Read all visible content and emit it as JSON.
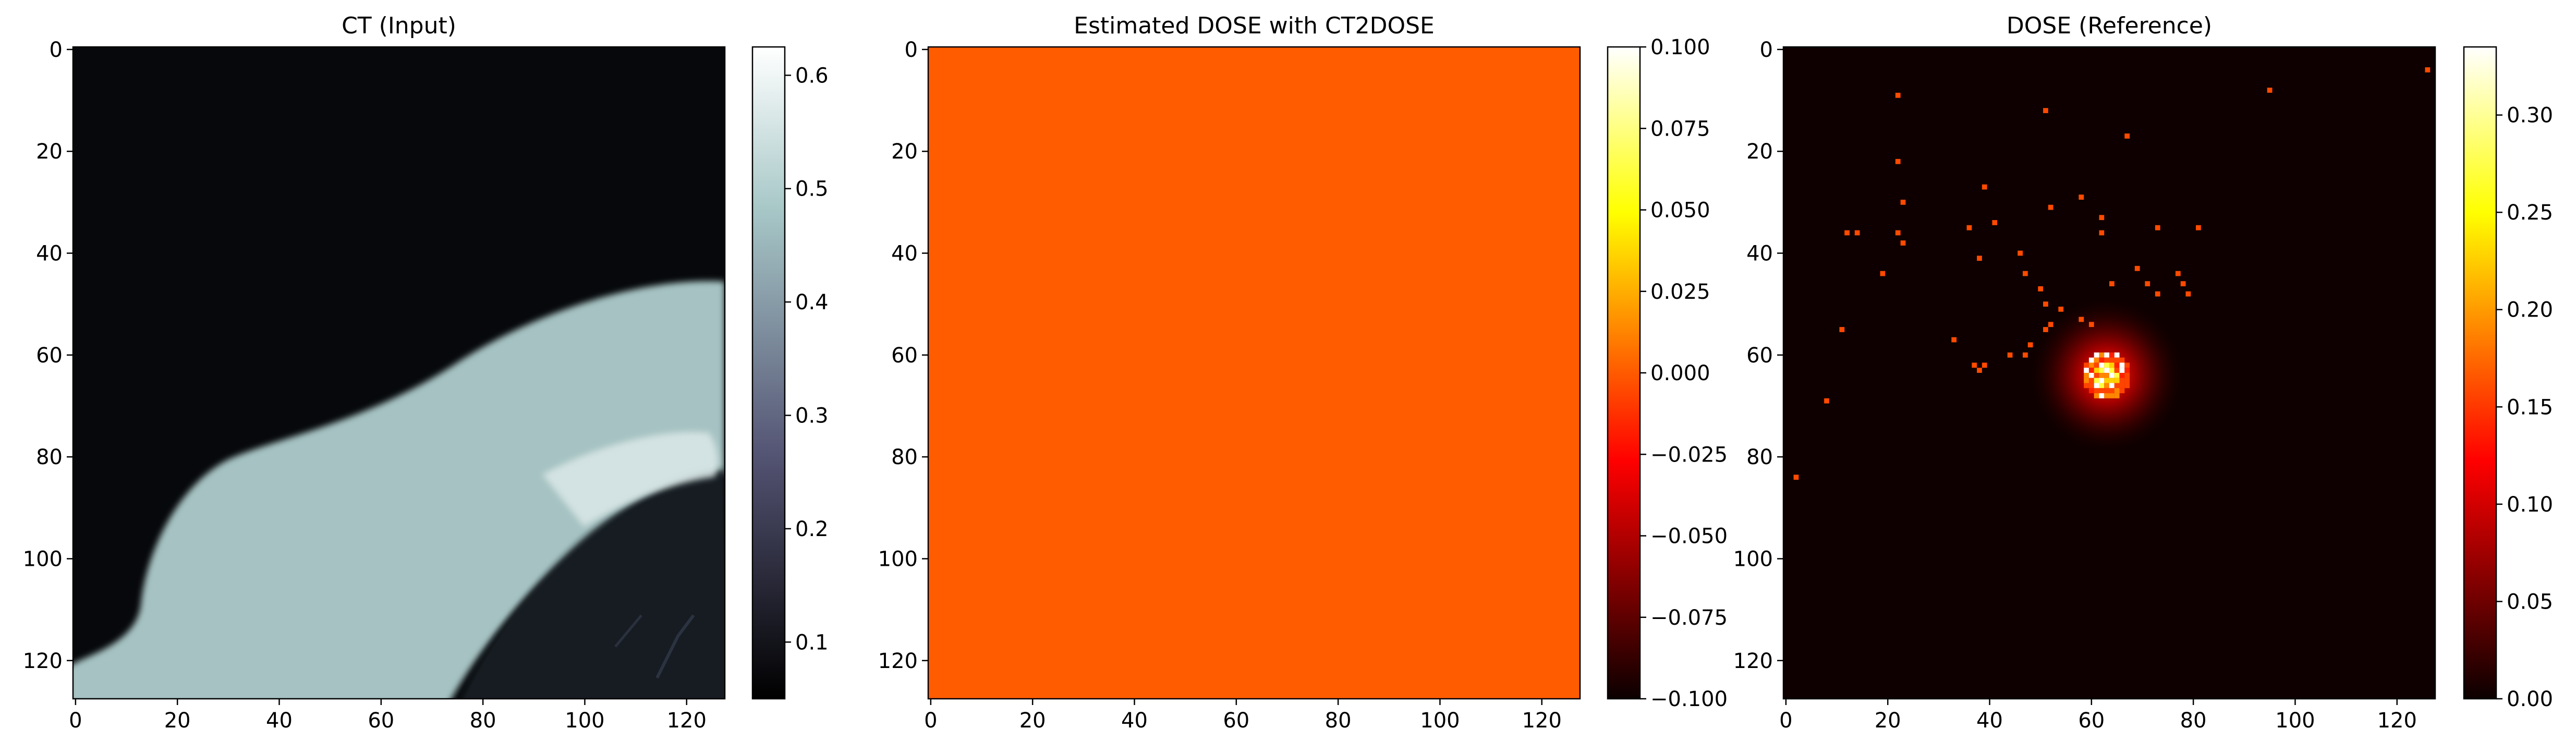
{
  "chart_data": [
    {
      "type": "heatmap",
      "title": "CT (Input)",
      "x_ticks": [
        "0",
        "20",
        "40",
        "60",
        "80",
        "100",
        "120"
      ],
      "y_ticks": [
        "0",
        "20",
        "40",
        "60",
        "80",
        "100",
        "120"
      ],
      "x_range": [
        0,
        127
      ],
      "y_range": [
        0,
        127
      ],
      "y_inverted": true,
      "colormap": "bone",
      "colorbar": {
        "ticks": [
          "0.1",
          "0.2",
          "0.3",
          "0.4",
          "0.5",
          "0.6"
        ],
        "range": [
          0.05,
          0.625
        ]
      },
      "regions": [
        {
          "label": "air",
          "value": 0.06
        },
        {
          "label": "soft tissue (curved band, upper-right to lower-left)",
          "value": 0.5
        },
        {
          "label": "rib/bone highlight",
          "value": 0.62
        },
        {
          "label": "lung (lower-right)",
          "value": 0.1
        }
      ]
    },
    {
      "type": "heatmap",
      "title": "Estimated DOSE with CT2DOSE",
      "x_ticks": [
        "0",
        "20",
        "40",
        "60",
        "80",
        "100",
        "120"
      ],
      "y_ticks": [
        "0",
        "20",
        "40",
        "60",
        "80",
        "100",
        "120"
      ],
      "x_range": [
        0,
        127
      ],
      "y_range": [
        0,
        127
      ],
      "y_inverted": true,
      "colormap": "hot",
      "colorbar": {
        "ticks": [
          "0.100",
          "0.075",
          "0.050",
          "0.025",
          "0.000",
          "−0.025",
          "−0.050",
          "−0.075",
          "−0.100"
        ],
        "range": [
          -0.1,
          0.1
        ]
      },
      "uniform_value": 0.0
    },
    {
      "type": "heatmap",
      "title": "DOSE (Reference)",
      "x_ticks": [
        "0",
        "20",
        "40",
        "60",
        "80",
        "100",
        "120"
      ],
      "y_ticks": [
        "0",
        "20",
        "40",
        "60",
        "80",
        "100",
        "120"
      ],
      "x_range": [
        0,
        127
      ],
      "y_range": [
        0,
        127
      ],
      "y_inverted": true,
      "colormap": "hot",
      "colorbar": {
        "ticks": [
          "0.30",
          "0.25",
          "0.20",
          "0.15",
          "0.10",
          "0.05",
          "0.00"
        ],
        "range": [
          0.0,
          0.335
        ]
      },
      "hotspot": {
        "center": [
          63,
          64
        ],
        "peak": 0.33
      },
      "scatter_pixels": [
        [
          22,
          9
        ],
        [
          51,
          12
        ],
        [
          95,
          8
        ],
        [
          126,
          4
        ],
        [
          22,
          22
        ],
        [
          67,
          17
        ],
        [
          39,
          27
        ],
        [
          58,
          29
        ],
        [
          23,
          30
        ],
        [
          52,
          31
        ],
        [
          36,
          35
        ],
        [
          12,
          36
        ],
        [
          14,
          36
        ],
        [
          22,
          36
        ],
        [
          41,
          34
        ],
        [
          62,
          33
        ],
        [
          73,
          35
        ],
        [
          81,
          35
        ],
        [
          23,
          38
        ],
        [
          62,
          36
        ],
        [
          38,
          41
        ],
        [
          46,
          40
        ],
        [
          69,
          43
        ],
        [
          47,
          44
        ],
        [
          19,
          44
        ],
        [
          64,
          46
        ],
        [
          71,
          46
        ],
        [
          78,
          46
        ],
        [
          77,
          44
        ],
        [
          50,
          47
        ],
        [
          73,
          48
        ],
        [
          79,
          48
        ],
        [
          51,
          50
        ],
        [
          54,
          51
        ],
        [
          58,
          53
        ],
        [
          52,
          54
        ],
        [
          60,
          54
        ],
        [
          11,
          55
        ],
        [
          51,
          55
        ],
        [
          33,
          57
        ],
        [
          48,
          58
        ],
        [
          44,
          60
        ],
        [
          47,
          60
        ],
        [
          37,
          62
        ],
        [
          39,
          62
        ],
        [
          38,
          63
        ],
        [
          8,
          69
        ],
        [
          2,
          84
        ]
      ]
    }
  ]
}
